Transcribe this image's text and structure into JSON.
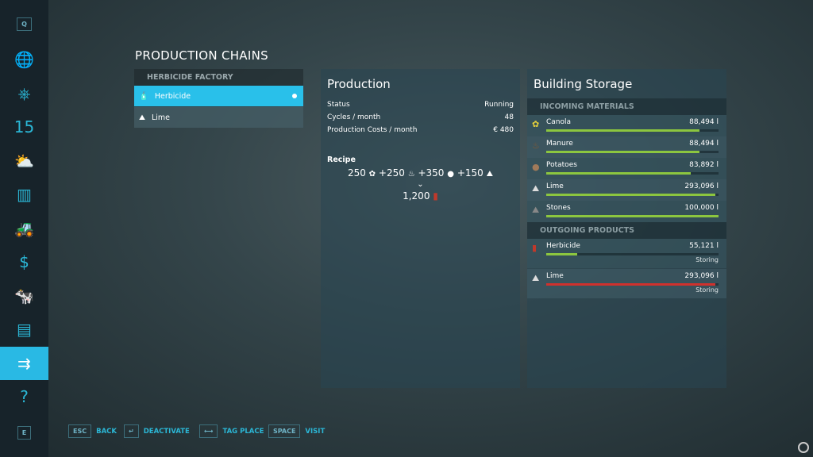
{
  "sidebar": {
    "top_key": "Q",
    "bottom_key": "E",
    "items": [
      {
        "icon": "globe-map-icon",
        "glyph": "🌐"
      },
      {
        "icon": "steering-wheel-icon",
        "glyph": "⎈"
      },
      {
        "icon": "calendar-icon",
        "glyph": "15"
      },
      {
        "icon": "weather-icon",
        "glyph": "⛅"
      },
      {
        "icon": "statistics-icon",
        "glyph": "▥"
      },
      {
        "icon": "tractor-icon",
        "glyph": "🚜"
      },
      {
        "icon": "finances-icon",
        "glyph": "$"
      },
      {
        "icon": "animals-icon",
        "glyph": "🐄"
      },
      {
        "icon": "contracts-icon",
        "glyph": "▤"
      },
      {
        "icon": "production-icon",
        "glyph": "⇉",
        "active": true
      },
      {
        "icon": "help-icon",
        "glyph": "?"
      }
    ]
  },
  "page_title": "PRODUCTION CHAINS",
  "chains": {
    "header": "HERBICIDE FACTORY",
    "items": [
      {
        "label": "Herbicide",
        "icon": "herbicide-icon",
        "glyph": "🧴",
        "selected": true
      },
      {
        "label": "Lime",
        "icon": "lime-icon",
        "glyph": "⛰"
      }
    ]
  },
  "production": {
    "title": "Production",
    "rows": [
      {
        "label": "Status",
        "value": "Running"
      },
      {
        "label": "Cycles / month",
        "value": "48"
      },
      {
        "label": "Production Costs / month",
        "value": "€ 480"
      }
    ],
    "recipe_label": "Recipe",
    "inputs": [
      {
        "amount": "250",
        "glyph": "✿",
        "icon": "canola-icon"
      },
      {
        "amount": "+250",
        "glyph": "♨",
        "icon": "manure-icon"
      },
      {
        "amount": "+350",
        "glyph": "●",
        "icon": "potatoes-icon"
      },
      {
        "amount": "+150",
        "glyph": "⛰",
        "icon": "lime-icon"
      }
    ],
    "output": {
      "amount": "1,200",
      "glyph": "▮",
      "icon": "herbicide-icon"
    }
  },
  "storage": {
    "title": "Building Storage",
    "incoming_label": "INCOMING MATERIALS",
    "outgoing_label": "OUTGOING PRODUCTS",
    "incoming": [
      {
        "name": "Canola",
        "value": "88,494 l",
        "fill": 0.89,
        "glyph": "✿",
        "color": "#e8d23a"
      },
      {
        "name": "Manure",
        "value": "88,494 l",
        "fill": 0.89,
        "glyph": "♨",
        "color": "#8a5a30"
      },
      {
        "name": "Potatoes",
        "value": "83,892 l",
        "fill": 0.84,
        "glyph": "●",
        "color": "#a07a5a"
      },
      {
        "name": "Lime",
        "value": "293,096 l",
        "fill": 0.98,
        "glyph": "⛰",
        "color": "#ddd"
      },
      {
        "name": "Stones",
        "value": "100,000 l",
        "fill": 1.0,
        "glyph": "⛰",
        "color": "#888"
      }
    ],
    "outgoing": [
      {
        "name": "Herbicide",
        "value": "55,121 l",
        "fill": 0.18,
        "status": "Storing",
        "glyph": "▮",
        "color": "#c0392b",
        "bar_color": "#8cc63f"
      },
      {
        "name": "Lime",
        "value": "293,096 l",
        "fill": 0.98,
        "status": "Storing",
        "glyph": "⛰",
        "color": "#ddd",
        "bar_color": "#d0312d"
      }
    ]
  },
  "footer": [
    {
      "key": "ESC",
      "label": "BACK"
    },
    {
      "key": "↵",
      "label": "DEACTIVATE"
    },
    {
      "key": "⟷",
      "label": "TAG PLACE"
    },
    {
      "key": "SPACE",
      "label": "VISIT"
    }
  ]
}
